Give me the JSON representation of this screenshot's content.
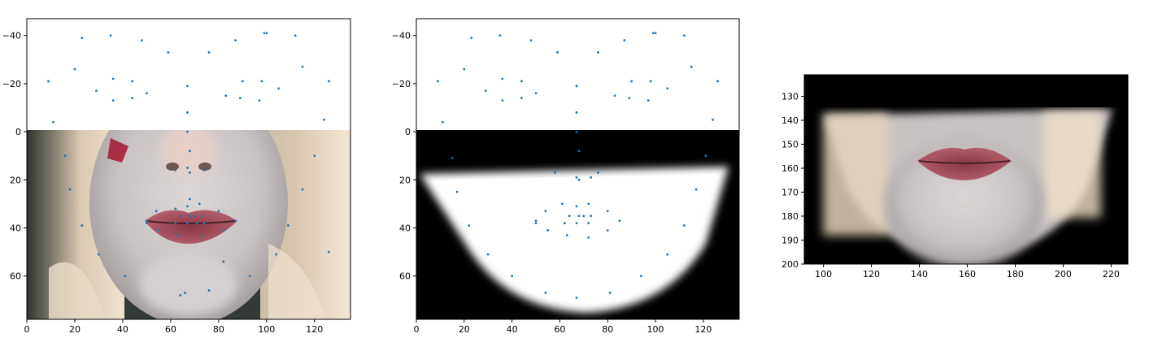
{
  "figure": {
    "background": "#ffffff",
    "marker_color": "#1f77b4"
  },
  "chart_data": [
    {
      "type": "scatter",
      "title": "",
      "xlabel": "",
      "ylabel": "",
      "background_image": "face photo (nose, lips, chin) with blonde hair",
      "xlim": [
        0,
        135
      ],
      "ylim": [
        78,
        -47
      ],
      "y_inverted": true,
      "x_ticks": [
        0,
        20,
        40,
        60,
        80,
        100,
        120
      ],
      "y_ticks": [
        -40,
        -20,
        0,
        20,
        40,
        60
      ],
      "grid": false,
      "points": {
        "x": [
          9,
          11,
          20,
          23,
          29,
          35,
          36,
          36,
          44,
          44,
          48,
          50,
          59,
          67,
          67,
          67,
          68,
          68,
          76,
          83,
          87,
          89,
          90,
          97,
          98,
          99,
          100,
          105,
          112,
          115,
          124,
          126,
          16,
          18,
          23,
          30,
          41,
          66,
          64,
          76,
          82,
          93,
          104,
          109,
          115,
          120,
          126,
          50,
          50,
          54,
          55,
          62,
          62,
          63,
          64,
          67,
          67,
          68,
          70,
          71,
          72,
          73,
          73,
          74,
          80,
          82,
          87,
          62,
          67,
          68,
          74
        ],
        "y": [
          -21,
          -4,
          -26,
          -39,
          -17,
          -40,
          -13,
          -22,
          -21,
          -14,
          -38,
          -16,
          -33,
          -8,
          -19,
          0,
          8,
          28,
          -33,
          -15,
          -38,
          -14,
          -21,
          -13,
          -21,
          -41,
          -41,
          -18,
          -40,
          -27,
          -5,
          -21,
          10,
          24,
          39,
          51,
          60,
          67,
          68,
          66,
          54,
          60,
          51,
          39,
          24,
          10,
          50,
          37,
          38,
          33,
          41,
          32,
          38,
          43,
          35,
          31,
          38,
          35,
          35,
          38,
          30,
          35,
          43,
          38,
          33,
          41,
          37,
          16,
          15,
          17,
          16
        ]
      }
    },
    {
      "type": "scatter",
      "title": "",
      "xlabel": "",
      "ylabel": "",
      "background_image": "soft-edged white face-lower-half mask on black",
      "xlim": [
        0,
        135
      ],
      "ylim": [
        78,
        -47
      ],
      "y_inverted": true,
      "x_ticks": [
        0,
        20,
        40,
        60,
        80,
        100,
        120
      ],
      "y_ticks": [
        -40,
        -20,
        0,
        20,
        40,
        60
      ],
      "grid": false,
      "points": {
        "x": [
          9,
          11,
          20,
          23,
          29,
          35,
          36,
          36,
          44,
          44,
          48,
          50,
          59,
          67,
          67,
          67,
          68,
          68,
          76,
          83,
          87,
          89,
          90,
          97,
          98,
          99,
          100,
          105,
          112,
          115,
          124,
          126,
          15,
          17,
          22,
          30,
          40,
          54,
          67,
          81,
          94,
          105,
          112,
          117,
          121,
          50,
          50,
          54,
          55,
          61,
          62,
          63,
          64,
          67,
          67,
          68,
          70,
          72,
          72,
          72,
          73,
          80,
          80,
          85,
          58,
          67,
          73,
          76
        ],
        "y": [
          -21,
          -4,
          -26,
          -39,
          -17,
          -40,
          -13,
          -22,
          -21,
          -14,
          -38,
          -16,
          -33,
          -8,
          -19,
          0,
          8,
          20,
          -33,
          -15,
          -38,
          -14,
          -21,
          -13,
          -21,
          -41,
          -41,
          -18,
          -40,
          -27,
          -5,
          -21,
          11,
          25,
          39,
          51,
          60,
          67,
          69,
          67,
          60,
          51,
          39,
          24,
          10,
          37,
          38,
          33,
          41,
          30,
          38,
          43,
          35,
          31,
          38,
          35,
          35,
          30,
          38,
          44,
          35,
          33,
          41,
          37,
          17,
          19,
          19,
          17
        ]
      }
    },
    {
      "type": "image",
      "title": "",
      "xlabel": "",
      "ylabel": "",
      "background_image": "cropped lower face (lips and chin) on black",
      "xlim": [
        92,
        227
      ],
      "ylim": [
        200,
        121
      ],
      "y_inverted": true,
      "x_ticks": [
        100,
        120,
        140,
        160,
        180,
        200,
        220
      ],
      "y_ticks": [
        130,
        140,
        150,
        160,
        170,
        180,
        190,
        200
      ],
      "grid": false
    }
  ]
}
